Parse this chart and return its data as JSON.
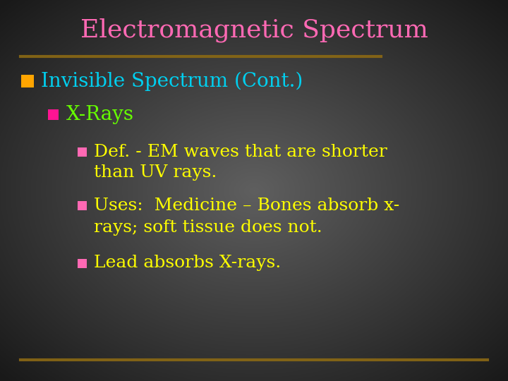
{
  "title": "Electromagnetic Spectrum",
  "title_color": "#FF69B4",
  "background_color": "#5a5a5a",
  "divider_color": "#8B6914",
  "bullet1_marker_color": "#FFA500",
  "bullet1_text": "Invisible Spectrum (Cont.)",
  "bullet1_text_color": "#00CFEF",
  "bullet2_marker_color": "#FF1493",
  "bullet2_text": "X-Rays",
  "bullet2_text_color": "#66FF00",
  "bullet3_marker_color": "#FF69B4",
  "bullet3_text_line1": "Def. - EM waves that are shorter",
  "bullet3_text_line2": "than UV rays.",
  "bullet3_text_color": "#FFFF00",
  "bullet4_marker_color": "#FF69B4",
  "bullet4_text_line1": "Uses:  Medicine – Bones absorb x-",
  "bullet4_text_line2": "rays; soft tissue does not.",
  "bullet4_text_color": "#FFFF00",
  "bullet5_marker_color": "#FF69B4",
  "bullet5_text": "Lead absorbs X-rays.",
  "bullet5_text_color": "#FFFF00",
  "title_fontsize": 26,
  "bullet1_fontsize": 20,
  "bullet2_fontsize": 20,
  "bullet3_fontsize": 18,
  "bullet4_fontsize": 18,
  "bullet5_fontsize": 18
}
